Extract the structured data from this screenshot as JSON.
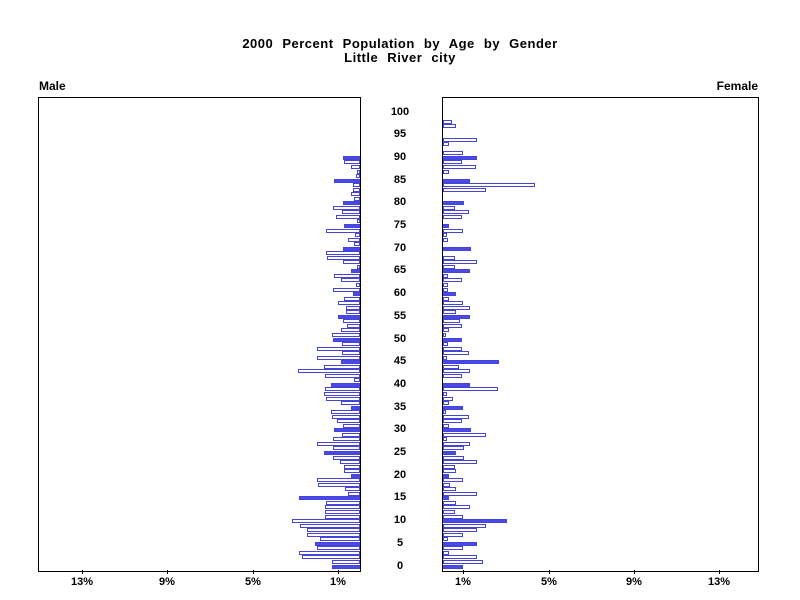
{
  "title": {
    "line1": "2000 Percent Population by Age by Gender",
    "line2": "Little River city"
  },
  "panels": {
    "male_label": "Male",
    "female_label": "Female"
  },
  "colors": {
    "bar_fill": "#4a4ae8",
    "bar_outline": "#4444dd",
    "axis": "#000000",
    "background": "#ffffff"
  },
  "chart_data": {
    "type": "bar",
    "subtype": "population-pyramid",
    "title": "2000 Percent Population by Age by Gender",
    "subtitle": "Little River city",
    "orientation": "horizontal, male bars extend left, female bars extend right",
    "age_axis": {
      "min": 0,
      "max": 100,
      "tick_step": 5,
      "tick_labels": [
        0,
        5,
        10,
        15,
        20,
        25,
        30,
        35,
        40,
        45,
        50,
        55,
        60,
        65,
        70,
        75,
        80,
        85,
        90,
        95,
        100
      ]
    },
    "pct_axis": {
      "min": 0,
      "max": 15,
      "male_tick_values": [
        13,
        9,
        5,
        1
      ],
      "male_tick_labels": [
        "13%",
        "9%",
        "5%",
        "1%"
      ],
      "female_tick_values": [
        1,
        5,
        9,
        13
      ],
      "female_tick_labels": [
        "1%",
        "5%",
        "9%",
        "13%"
      ]
    },
    "legend_note": "bars at 5-year ages drawn solid blue, other single-year ages drawn hollow with blue outline",
    "male_filled_ages": [
      0,
      5,
      15,
      20,
      25,
      30,
      35,
      40,
      45,
      50,
      55,
      60,
      65,
      70,
      75,
      80,
      85,
      90
    ],
    "female_filled_ages": [
      0,
      5,
      10,
      15,
      20,
      25,
      30,
      35,
      40,
      45,
      50,
      55,
      60,
      65,
      70,
      75,
      80,
      85,
      90
    ],
    "ages": [
      0,
      1,
      2,
      3,
      4,
      5,
      6,
      7,
      8,
      9,
      10,
      11,
      12,
      13,
      14,
      15,
      16,
      17,
      18,
      19,
      20,
      21,
      22,
      23,
      24,
      25,
      26,
      27,
      28,
      29,
      30,
      31,
      32,
      33,
      34,
      35,
      36,
      37,
      38,
      39,
      40,
      41,
      42,
      43,
      44,
      45,
      46,
      47,
      48,
      49,
      50,
      51,
      52,
      53,
      54,
      55,
      56,
      57,
      58,
      59,
      60,
      61,
      62,
      63,
      64,
      65,
      66,
      67,
      68,
      69,
      70,
      71,
      72,
      73,
      74,
      75,
      76,
      77,
      78,
      79,
      80,
      81,
      82,
      83,
      84,
      85,
      86,
      87,
      88,
      89,
      90,
      91,
      92,
      93,
      94,
      95,
      96,
      97,
      98,
      99,
      100
    ],
    "male_pct": [
      1.3,
      1.3,
      2.7,
      2.85,
      2.0,
      2.1,
      1.9,
      2.5,
      2.5,
      2.8,
      3.2,
      1.65,
      1.65,
      1.65,
      1.6,
      2.85,
      0.55,
      0.7,
      1.95,
      2.0,
      0.4,
      0.75,
      0.75,
      0.95,
      1.25,
      1.7,
      1.25,
      2.0,
      1.25,
      0.85,
      1.2,
      0.8,
      1.1,
      1.3,
      1.35,
      0.4,
      0.9,
      1.6,
      1.7,
      1.65,
      1.35,
      0.3,
      1.65,
      2.9,
      1.7,
      0.9,
      2.0,
      0.85,
      2.0,
      0.85,
      1.25,
      1.3,
      0.9,
      0.6,
      0.8,
      1.05,
      0.65,
      0.65,
      1.05,
      0.75,
      0.35,
      1.25,
      0.2,
      0.9,
      1.2,
      0.4,
      0.15,
      0.8,
      1.55,
      1.6,
      0.8,
      0.3,
      0.55,
      0.25,
      1.6,
      0.75,
      0.15,
      1.15,
      0.85,
      1.25,
      0.8,
      0.3,
      0.4,
      0.35,
      0.35,
      1.2,
      0.2,
      0.15,
      0.4,
      0.75,
      0.8,
      0,
      0,
      0,
      0,
      0,
      0,
      0,
      0,
      0,
      0
    ],
    "female_pct": [
      0.95,
      1.9,
      1.6,
      0.3,
      0.95,
      1.6,
      0.25,
      0.95,
      1.6,
      2.0,
      3.0,
      0.95,
      0.55,
      1.25,
      0.6,
      0.3,
      1.6,
      0.6,
      0.35,
      0.95,
      0.3,
      0.6,
      0.55,
      1.6,
      1.0,
      0.6,
      1.0,
      1.25,
      0.2,
      2.0,
      1.3,
      0.3,
      0.9,
      1.2,
      0.15,
      0.95,
      0.3,
      0.45,
      0.2,
      2.6,
      1.25,
      0,
      0.9,
      1.25,
      0.75,
      2.65,
      0.2,
      1.2,
      0.9,
      0.25,
      0.9,
      0.15,
      0.3,
      0.9,
      0.8,
      1.25,
      0.6,
      1.25,
      0.95,
      0.3,
      0.6,
      0.25,
      0.25,
      0.9,
      0.25,
      1.25,
      0.55,
      1.6,
      0.55,
      0,
      1.3,
      0,
      0.25,
      0.2,
      0.95,
      0.3,
      0,
      0.9,
      1.2,
      0.55,
      1.0,
      0,
      0,
      2.0,
      4.3,
      1.25,
      0,
      0.3,
      1.55,
      0.9,
      1.6,
      0.95,
      0,
      0.3,
      1.6,
      0,
      0,
      0.6,
      0.4,
      0,
      0
    ]
  }
}
